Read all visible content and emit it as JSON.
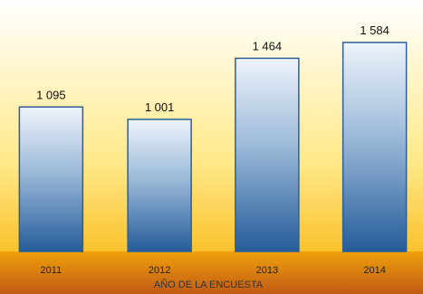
{
  "chart_data": {
    "type": "bar",
    "categories": [
      "2011",
      "2012",
      "2013",
      "2014"
    ],
    "values": [
      1095,
      1001,
      1464,
      1584
    ],
    "value_labels": [
      "1 095",
      "1 001",
      "1 464",
      "1 584"
    ],
    "xlabel": "AÑO DE LA ENCUESTA",
    "ylabel": "",
    "ylim": [
      0,
      1700
    ],
    "grid": false,
    "legend": "none"
  },
  "colors": {
    "background_top": "#ffffff",
    "background_mid": "#ffe98a",
    "background_bottom": "#f7b000",
    "axis_band_top": "#f0a10c",
    "axis_band_bottom": "#c15a14",
    "bar_top": "#eef3fa",
    "bar_mid": "#9cbad9",
    "bar_bottom": "#245c9a",
    "bar_outline": "#2d5f96"
  }
}
